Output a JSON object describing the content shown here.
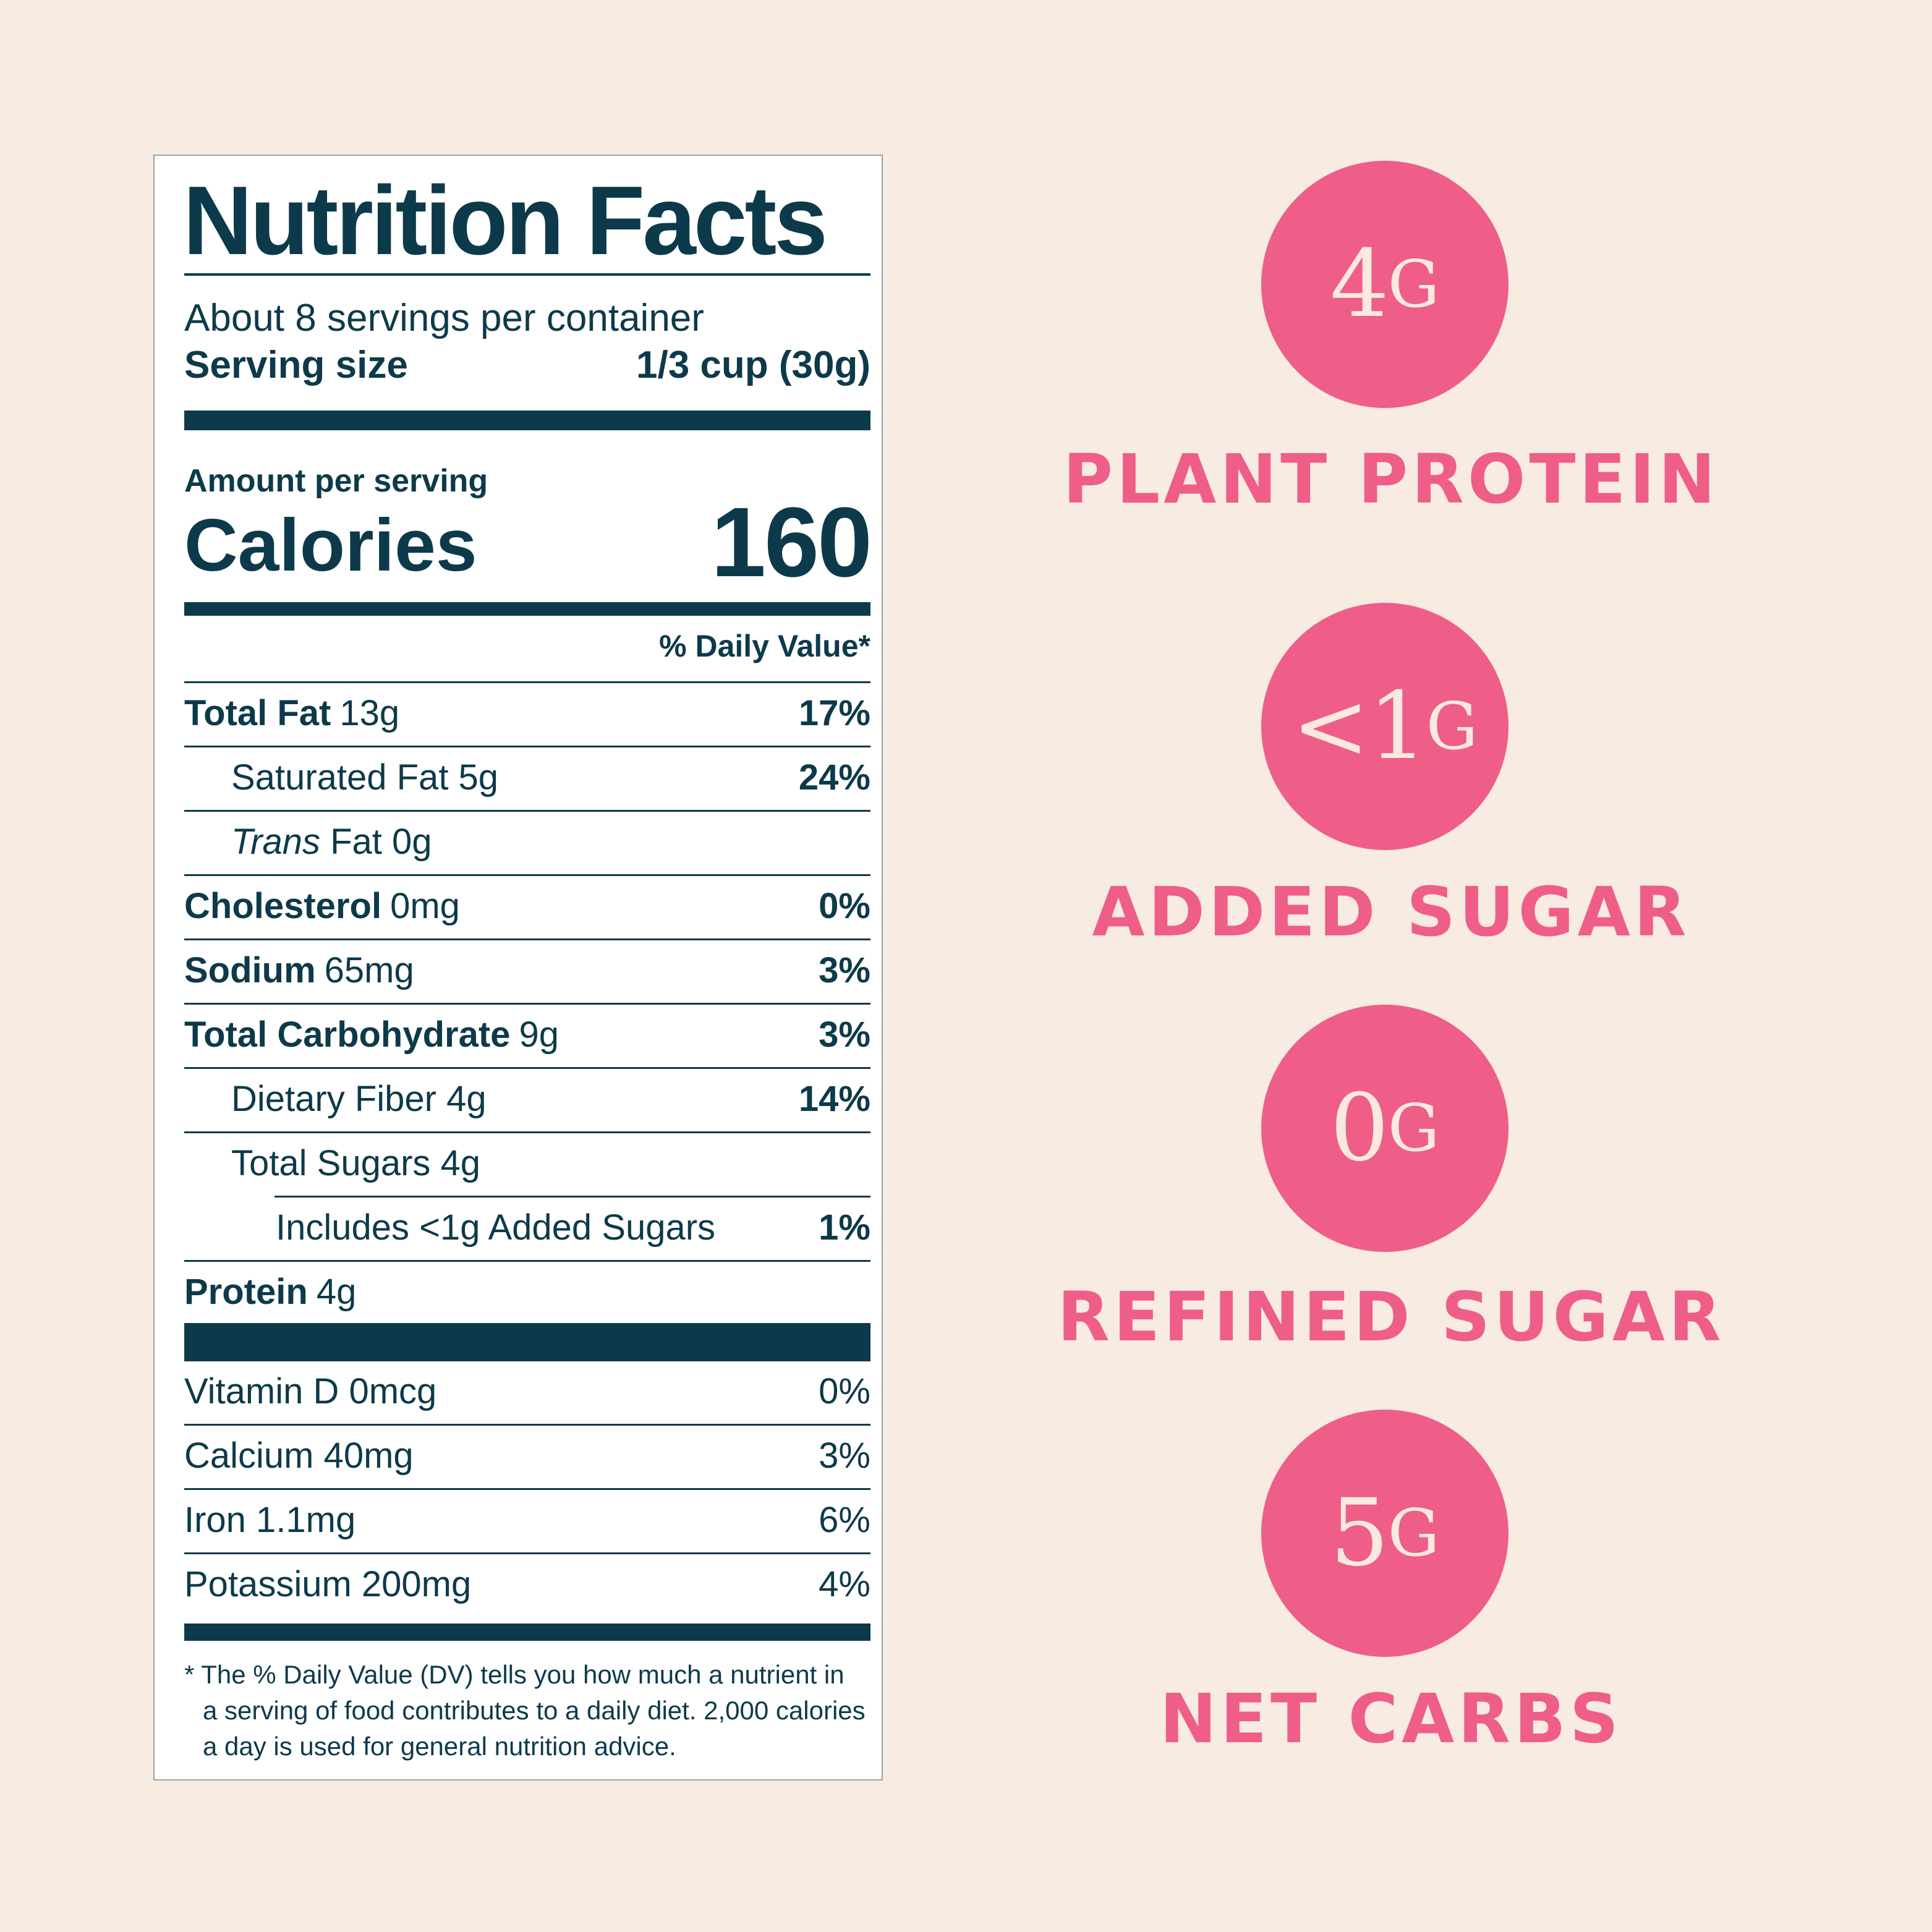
{
  "label": {
    "title": "Nutrition Facts",
    "servings_per_container": "About 8 servings per container",
    "serving_size_label": "Serving size",
    "serving_size_value": "1/3 cup (30g)",
    "amount_per_serving": "Amount per serving",
    "calories_label": "Calories",
    "calories_value": "160",
    "daily_value_header": "% Daily Value*",
    "nutrients": [
      {
        "name": "Total Fat",
        "amount": "13g",
        "dv": "17%"
      },
      {
        "name": "Saturated Fat 5g",
        "amount": "",
        "dv": "24%"
      },
      {
        "name_italic": "Trans",
        "name": " Fat 0g",
        "amount": "",
        "dv": ""
      },
      {
        "name": "Cholesterol",
        "amount": "0mg",
        "dv": "0%"
      },
      {
        "name": "Sodium",
        "amount": "65mg",
        "dv": "3%"
      },
      {
        "name": "Total Carbohydrate",
        "amount": "9g",
        "dv": "3%"
      },
      {
        "name": "Dietary Fiber 4g",
        "amount": "",
        "dv": "14%"
      },
      {
        "name": "Total Sugars 4g",
        "amount": "",
        "dv": ""
      },
      {
        "name": "Includes <1g Added Sugars",
        "amount": "",
        "dv": "1%"
      },
      {
        "name": "Protein",
        "amount": "4g",
        "dv": ""
      }
    ],
    "vitamins": [
      {
        "name": "Vitamin D 0mcg",
        "dv": "0%"
      },
      {
        "name": "Calcium 40mg",
        "dv": "3%"
      },
      {
        "name": "Iron 1.1mg",
        "dv": "6%"
      },
      {
        "name": "Potassium 200mg",
        "dv": "4%"
      }
    ],
    "footnote_line1": "* The % Daily Value (DV) tells you how much a nutrient in",
    "footnote_line2": "a serving of food contributes to a daily diet. 2,000 calories",
    "footnote_line3": "a day is used for general nutrition advice."
  },
  "badges": [
    {
      "number": "4",
      "unit": "G",
      "caption": "PLANT PROTEIN"
    },
    {
      "number": "<1",
      "unit": "G",
      "caption": "ADDED SUGAR"
    },
    {
      "number": "0",
      "unit": "G",
      "caption": "REFINED SUGAR"
    },
    {
      "number": "5",
      "unit": "G",
      "caption": "NET CARBS"
    }
  ],
  "colors": {
    "background": "#f7ebe2",
    "label_ink": "#0d3a4a",
    "accent_pink": "#ee5e88",
    "badge_text": "#fbe9df"
  }
}
